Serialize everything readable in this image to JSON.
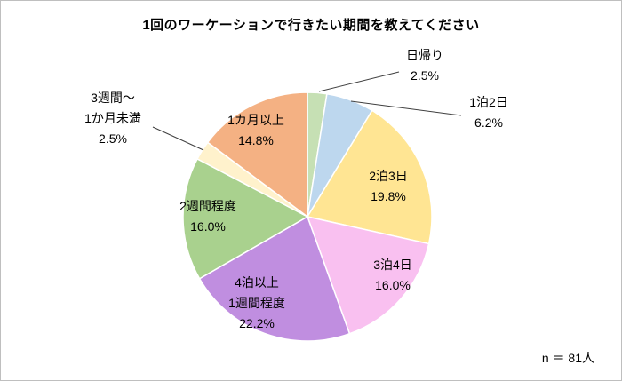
{
  "frame": {
    "background": "#FFFFFF",
    "border_color": "#BFBFBF"
  },
  "title": "1回のワーケーションで行きたい期間を教えてください",
  "note": "n ＝ 81人",
  "chart_data": {
    "type": "pie",
    "title": "1回のワーケーションで行きたい期間を教えてください",
    "start_angle_deg": 0,
    "direction": "clockwise",
    "legend_position": "none",
    "slice_border_color": "#FFFFFF",
    "leader_line_color": "#404040",
    "categories": [
      "日帰り",
      "1泊2日",
      "2泊3日",
      "3泊4日",
      "4泊以上1週間程度",
      "2週間程度",
      "3週間～1か月未満",
      "1カ月以上"
    ],
    "values": [
      2.5,
      6.2,
      19.8,
      16.0,
      22.2,
      16.0,
      2.5,
      14.8
    ],
    "slices": [
      {
        "label": "日帰り",
        "value": 2.5,
        "pct_text": "2.5%",
        "color": "#C6E0B4",
        "label_placement": "outside"
      },
      {
        "label": "1泊2日",
        "value": 6.2,
        "pct_text": "6.2%",
        "color": "#BDD7EE",
        "label_placement": "outside"
      },
      {
        "label": "2泊3日",
        "value": 19.8,
        "pct_text": "19.8%",
        "color": "#FFE593",
        "label_placement": "inside"
      },
      {
        "label": "3泊4日",
        "value": 16.0,
        "pct_text": "16.0%",
        "color": "#F9C0F0",
        "label_placement": "inside"
      },
      {
        "label": "4泊以上1週間程度",
        "value": 22.2,
        "pct_text": "22.2%",
        "color": "#C08EE0",
        "label_placement": "inside",
        "label_lines": [
          "4泊以上",
          "1週間程度"
        ]
      },
      {
        "label": "2週間程度",
        "value": 16.0,
        "pct_text": "16.0%",
        "color": "#A9D18E",
        "label_placement": "inside"
      },
      {
        "label": "3週間～1か月未満",
        "value": 2.5,
        "pct_text": "2.5%",
        "color": "#FFF2CC",
        "label_placement": "outside",
        "label_lines": [
          "3週間～",
          "1か月未満"
        ]
      },
      {
        "label": "1カ月以上",
        "value": 14.8,
        "pct_text": "14.8%",
        "color": "#F4B183",
        "label_placement": "inside"
      }
    ]
  }
}
